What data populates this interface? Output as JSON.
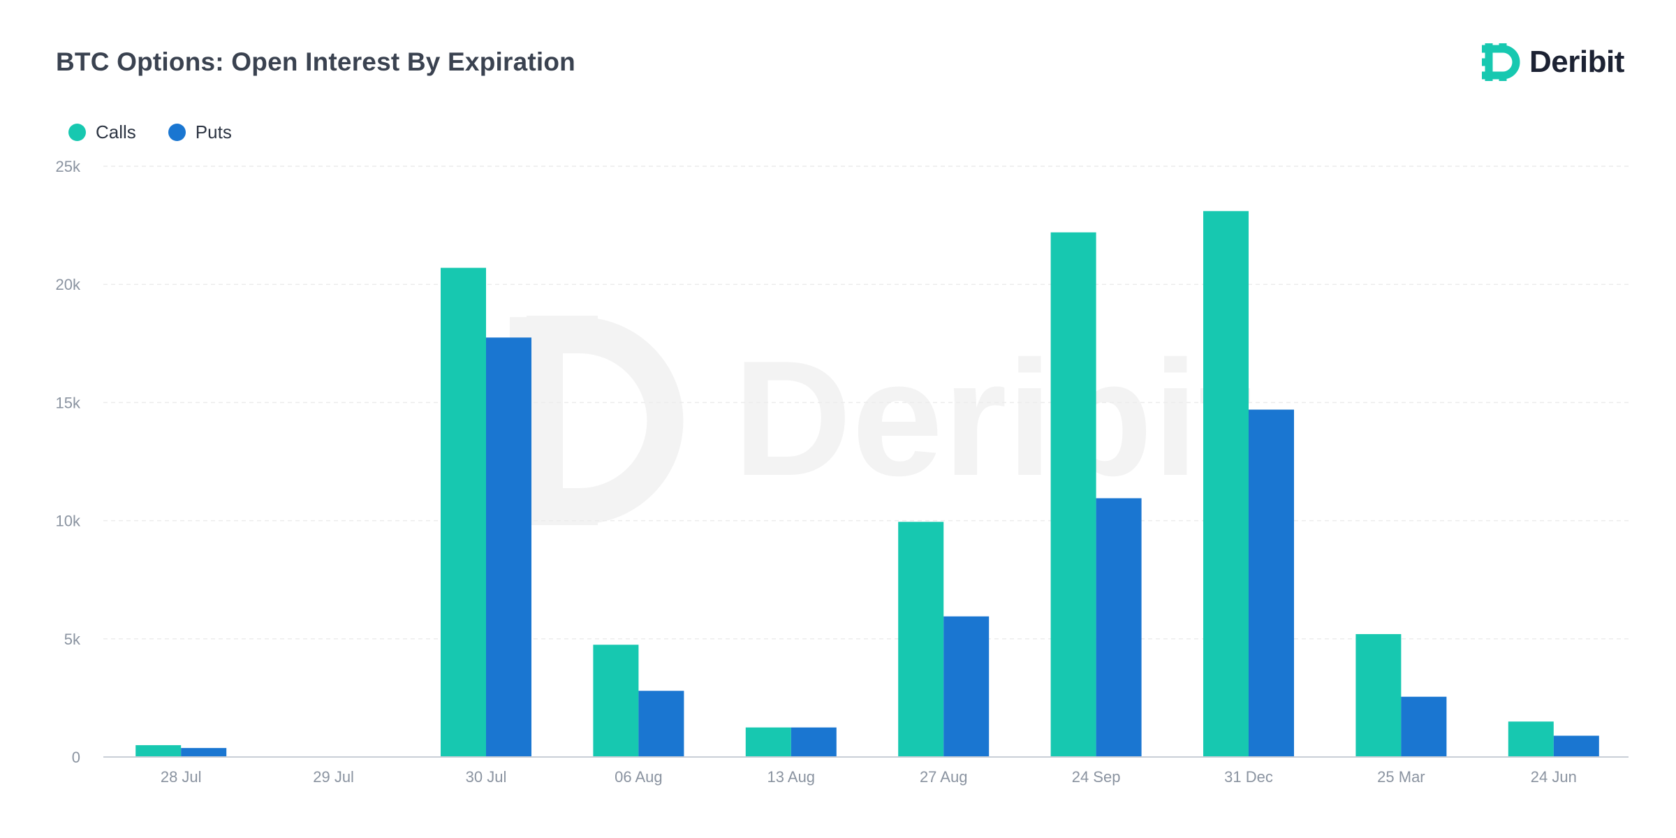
{
  "header": {
    "title": "BTC Options: Open Interest By Expiration",
    "logo_text": "Deribit"
  },
  "colors": {
    "calls": "#17c8b0",
    "puts": "#1a76d1",
    "brand": "#17c8b0",
    "watermark": "#f3f3f3"
  },
  "watermark": {
    "text": "Deribit"
  },
  "chart_data": {
    "type": "bar",
    "categories": [
      "28 Jul",
      "29 Jul",
      "30 Jul",
      "06 Aug",
      "13 Aug",
      "27 Aug",
      "24 Sep",
      "31 Dec",
      "25 Mar",
      "24 Jun"
    ],
    "series": [
      {
        "name": "Calls",
        "values": [
          500,
          0,
          20700,
          4750,
          1250,
          9950,
          22200,
          23100,
          5200,
          1500
        ]
      },
      {
        "name": "Puts",
        "values": [
          380,
          0,
          17750,
          2800,
          1250,
          5950,
          10950,
          14700,
          2550,
          900
        ]
      }
    ],
    "ylim": [
      0,
      25000
    ],
    "yticks": [
      0,
      5000,
      10000,
      15000,
      20000,
      25000
    ],
    "ytick_labels": [
      "0",
      "5k",
      "10k",
      "15k",
      "20k",
      "25k"
    ],
    "legend": "top-left",
    "grid": true
  }
}
